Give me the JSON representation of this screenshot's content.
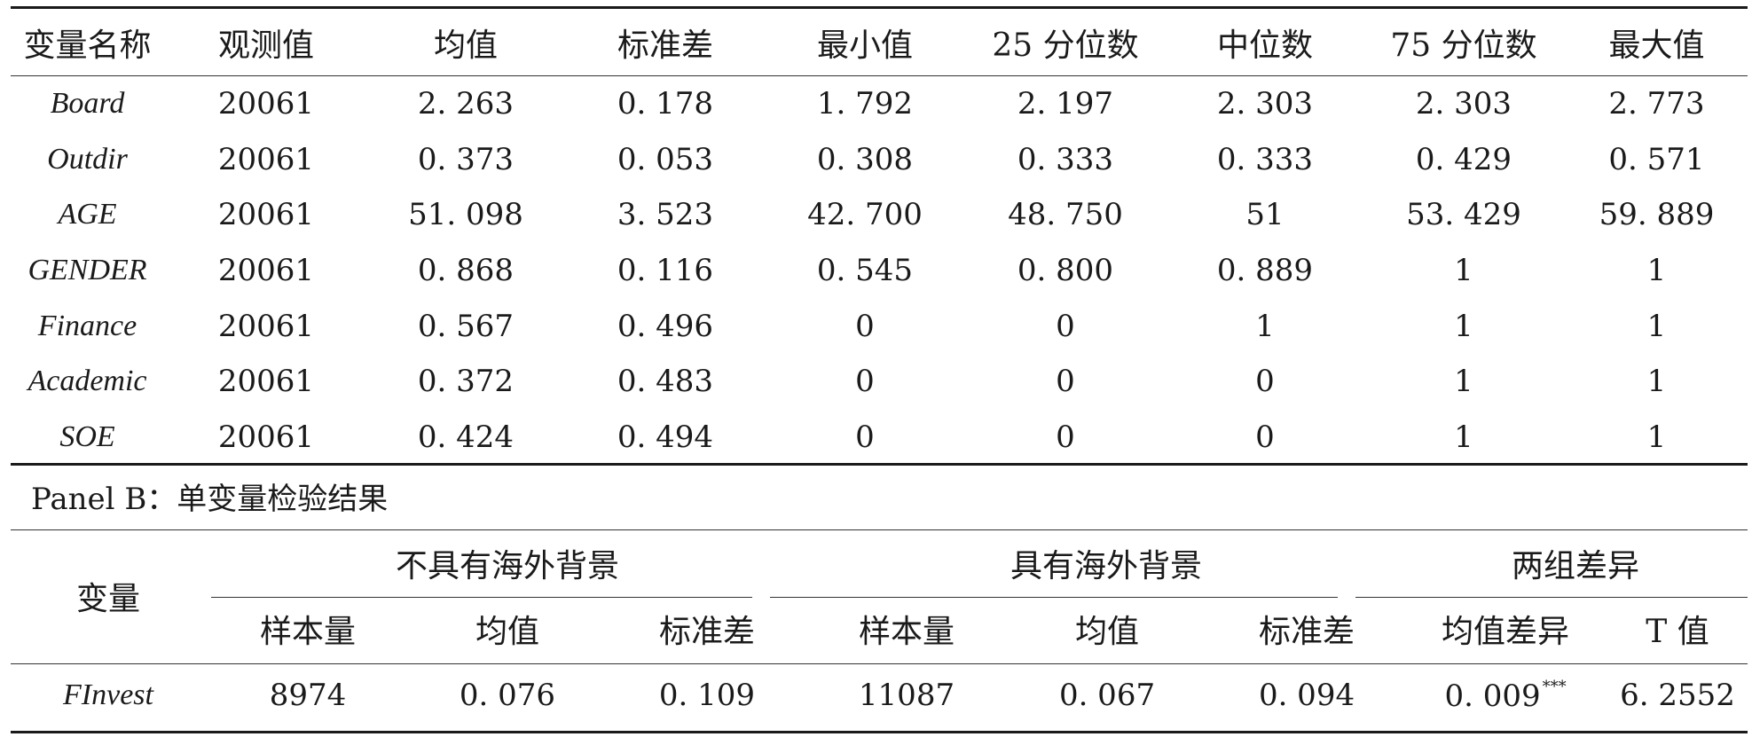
{
  "panel_a": {
    "headers": [
      "变量名称",
      "观测值",
      "均值",
      "标准差",
      "最小值",
      "25 分位数",
      "中位数",
      "75 分位数",
      "最大值"
    ],
    "rows": [
      [
        "Board",
        "20061",
        "2. 263",
        "0. 178",
        "1. 792",
        "2. 197",
        "2. 303",
        "2. 303",
        "2. 773"
      ],
      [
        "Outdir",
        "20061",
        "0. 373",
        "0. 053",
        "0. 308",
        "0. 333",
        "0. 333",
        "0. 429",
        "0. 571"
      ],
      [
        "AGE",
        "20061",
        "51. 098",
        "3. 523",
        "42. 700",
        "48. 750",
        "51",
        "53. 429",
        "59. 889"
      ],
      [
        "GENDER",
        "20061",
        "0. 868",
        "0. 116",
        "0. 545",
        "0. 800",
        "0. 889",
        "1",
        "1"
      ],
      [
        "Finance",
        "20061",
        "0. 567",
        "0. 496",
        "0",
        "0",
        "1",
        "1",
        "1"
      ],
      [
        "Academic",
        "20061",
        "0. 372",
        "0. 483",
        "0",
        "0",
        "0",
        "1",
        "1"
      ],
      [
        "SOE",
        "20061",
        "0. 424",
        "0. 494",
        "0",
        "0",
        "0",
        "1",
        "1"
      ]
    ]
  },
  "panel_b": {
    "title": "Panel B：单变量检验结果",
    "var_header": "变量",
    "groups": [
      "不具有海外背景",
      "具有海外背景",
      "两组差异"
    ],
    "subheaders": [
      "样本量",
      "均值",
      "标准差",
      "样本量",
      "均值",
      "标准差",
      "均值差异",
      "T 值"
    ],
    "row": {
      "var": "FInvest",
      "n1": "8974",
      "mean1": "0. 076",
      "sd1": "0. 109",
      "n2": "11087",
      "mean2": "0. 067",
      "sd2": "0. 094",
      "diff": "0. 009",
      "diff_sig": "***",
      "t": "6. 2552"
    }
  }
}
